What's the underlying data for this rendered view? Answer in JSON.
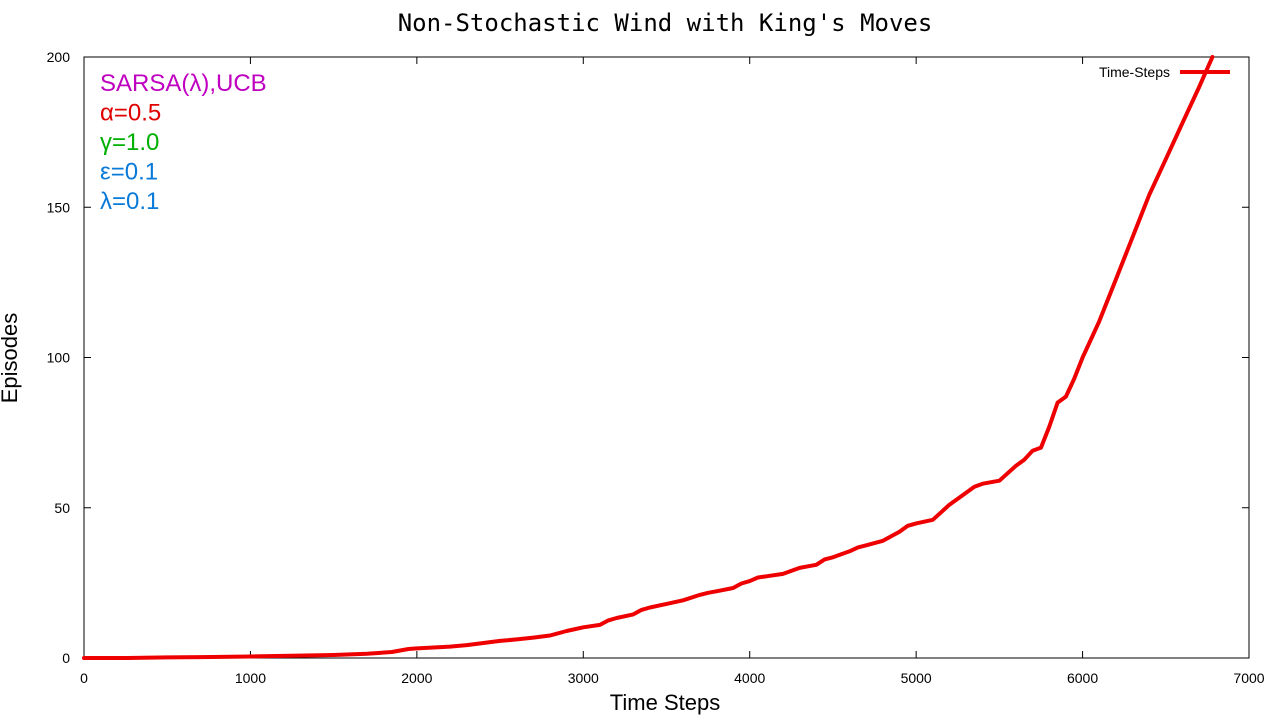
{
  "chart_data": {
    "type": "line",
    "title": "Non-Stochastic Wind with King's Moves",
    "xlabel": "Time Steps",
    "ylabel": "Episodes",
    "xlim": [
      0,
      7000
    ],
    "ylim": [
      0,
      200
    ],
    "xticks": [
      0,
      1000,
      2000,
      3000,
      4000,
      5000,
      6000,
      7000
    ],
    "yticks": [
      0,
      50,
      100,
      150,
      200
    ],
    "xtick_labels": [
      "0",
      "1000",
      "2000",
      "3000",
      "4000",
      "5000",
      "6000",
      "7000"
    ],
    "ytick_labels": [
      "0",
      "50",
      "100",
      "150",
      "200"
    ],
    "grid": false,
    "legend_position": "top-right",
    "annotations": [
      {
        "text": "SARSA(λ),UCB",
        "color": "#c000c0"
      },
      {
        "text": "α=0.5",
        "color": "#e00000"
      },
      {
        "text": "γ=1.0",
        "color": "#00b000"
      },
      {
        "text": "ε=0.1",
        "color": "#0a7ad8"
      },
      {
        "text": "λ=0.1",
        "color": "#0a7ad8"
      }
    ],
    "series": [
      {
        "name": "Time-Steps",
        "color": "#ee0000",
        "x": [
          0,
          250,
          500,
          700,
          1000,
          1200,
          1500,
          1700,
          1850,
          1950,
          2000,
          2100,
          2200,
          2300,
          2400,
          2500,
          2600,
          2700,
          2800,
          2900,
          3000,
          3100,
          3150,
          3200,
          3300,
          3350,
          3400,
          3500,
          3600,
          3700,
          3750,
          3800,
          3900,
          3950,
          4000,
          4050,
          4100,
          4200,
          4300,
          4350,
          4400,
          4450,
          4500,
          4600,
          4650,
          4700,
          4800,
          4850,
          4900,
          4950,
          5000,
          5100,
          5150,
          5200,
          5250,
          5300,
          5350,
          5400,
          5500,
          5550,
          5600,
          5650,
          5700,
          5750,
          5800,
          5850,
          5900,
          5950,
          6000,
          6050,
          6100,
          6200,
          6300,
          6400,
          6500,
          6600,
          6700,
          6780
        ],
        "y": [
          0,
          0,
          0.2,
          0.3,
          0.5,
          0.7,
          1.0,
          1.4,
          2.0,
          3.0,
          3.2,
          3.5,
          3.8,
          4.3,
          5.0,
          5.7,
          6.2,
          6.8,
          7.5,
          9.0,
          10.2,
          11.0,
          12.5,
          13.3,
          14.5,
          16.0,
          16.8,
          18.0,
          19.2,
          21.0,
          21.7,
          22.2,
          23.3,
          24.8,
          25.6,
          26.8,
          27.2,
          28.0,
          30.0,
          30.5,
          31.0,
          32.8,
          33.5,
          35.5,
          36.8,
          37.5,
          39.0,
          40.5,
          42.0,
          44.0,
          44.8,
          46.0,
          48.5,
          51.0,
          53.0,
          55.0,
          57.0,
          58.0,
          59.0,
          61.5,
          64.0,
          66.0,
          69.0,
          70.0,
          77.0,
          85.0,
          87.0,
          93.0,
          100.0,
          106.0,
          112.0,
          126.0,
          140.0,
          154.0,
          166.0,
          178.0,
          190.0,
          200.0
        ]
      }
    ]
  }
}
